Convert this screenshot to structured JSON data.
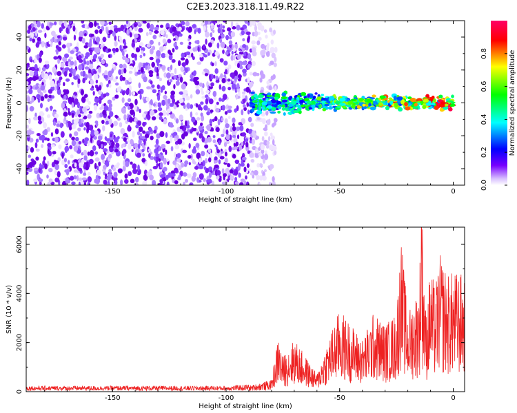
{
  "title": "C2E3.2023.318.11.49.R22",
  "chart_data": [
    {
      "type": "heatmap",
      "xlabel": "Height of straight line (km)",
      "ylabel": "Frequency (Hz)",
      "xlim": [
        -188,
        5
      ],
      "ylim": [
        -50,
        50
      ],
      "x_ticks": [
        -150,
        -100,
        -50,
        0
      ],
      "y_ticks": [
        -40,
        -20,
        0,
        20,
        40
      ],
      "colorbar": {
        "label": "Normalized spectral amplitude",
        "range": [
          0.0,
          1.0
        ],
        "ticks": [
          0.0,
          0.2,
          0.4,
          0.6,
          0.8
        ],
        "colors": [
          "#ffffff",
          "#7700ff",
          "#0000ff",
          "#00ffff",
          "#00ff00",
          "#ffff00",
          "#ff0000",
          "#ff0066"
        ]
      },
      "regions": [
        {
          "x": [
            -188,
            -89
          ],
          "freq_range": [
            -50,
            50
          ],
          "amplitude": [
            0.0,
            0.15
          ]
        },
        {
          "x": [
            -89,
            -78
          ],
          "freq_range": [
            -50,
            50
          ],
          "amplitude": [
            0.0,
            0.1
          ]
        },
        {
          "x": [
            -89,
            -60
          ],
          "freq_center": 0,
          "freq_width": 10,
          "amplitude": [
            0.2,
            0.6
          ]
        },
        {
          "x": [
            -60,
            0
          ],
          "freq_center": 0,
          "freq_width": 6,
          "amplitude": [
            0.3,
            1.0
          ]
        }
      ]
    },
    {
      "type": "line",
      "xlabel": "Height of straight line (km)",
      "ylabel": "SNR (10 * v/v)",
      "xlim": [
        -188,
        5
      ],
      "ylim": [
        0,
        6700
      ],
      "x_ticks": [
        -150,
        -100,
        -50,
        0
      ],
      "y_ticks": [
        0,
        2000,
        4000,
        6000
      ],
      "series_color": "#ee2222",
      "series": [
        {
          "x": [
            -188,
            -150,
            -100,
            -90,
            -80,
            -77,
            -75,
            -70,
            -65,
            -60,
            -55,
            -50,
            -45,
            -40,
            -35,
            -30,
            -25,
            -23,
            -20,
            -15,
            -14,
            -12,
            -10,
            -8,
            -6,
            -4,
            -2,
            0,
            5
          ],
          "values": [
            150,
            150,
            150,
            200,
            400,
            1900,
            1200,
            1800,
            1200,
            600,
            1800,
            2800,
            2300,
            1800,
            2700,
            2300,
            2700,
            5300,
            2700,
            3600,
            6700,
            2600,
            4300,
            3500,
            4700,
            4300,
            4000,
            4100,
            4000
          ]
        }
      ]
    }
  ]
}
